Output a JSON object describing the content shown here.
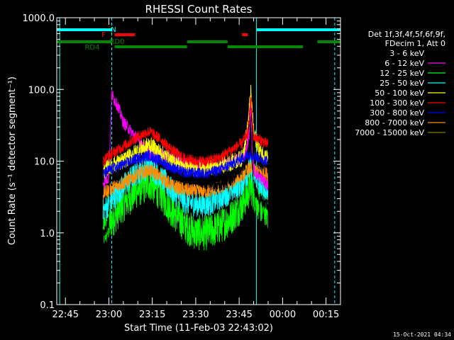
{
  "chart_data": {
    "type": "line",
    "title": "RHESSI Count Rates",
    "xlabel": "Start Time (11-Feb-03 22:43:02)",
    "ylabel": "Count Rate (s⁻¹ detector segment⁻¹)",
    "yscale": "log",
    "ylim": [
      0.1,
      1000
    ],
    "xlim_minutes": [
      -18,
      80
    ],
    "x_tick_labels": [
      "22:45",
      "23:00",
      "23:15",
      "23:30",
      "23:45",
      "00:00",
      "00:15"
    ],
    "y_tick_labels": [
      "0.1",
      "1.0",
      "10.0",
      "100.0",
      "1000.0"
    ],
    "legend_header": [
      "Det 1f,3f,4f,5f,6f,9f,",
      "FDecim 1, Att 0"
    ],
    "legend_position": "right",
    "timestamp": "15-Oct-2021 04:34",
    "series": [
      {
        "name": "3 - 6 keV",
        "color": "#000000",
        "x": [
          -2,
          0,
          1,
          3,
          5,
          8,
          11,
          14,
          18,
          22,
          26,
          30,
          34,
          38,
          42,
          45,
          47,
          48.5,
          49,
          49.5,
          50,
          51,
          52,
          53,
          54,
          55
        ],
        "y": [
          1.0,
          1.4,
          100,
          80,
          60,
          40,
          25,
          15,
          10,
          8.0,
          6.5,
          5.5,
          5.0,
          4.5,
          5.5,
          7.0,
          9.0,
          15,
          40,
          10,
          5.0,
          3.5,
          3.0,
          2.8,
          2.6,
          2.5
        ]
      },
      {
        "name": "6 - 12 keV",
        "color": "#ff00ff",
        "x": [
          -2,
          0,
          1,
          3,
          5,
          8,
          11,
          14,
          18,
          22,
          26,
          30,
          34,
          38,
          42,
          45,
          47,
          48.5,
          49,
          49.5,
          50,
          51,
          52,
          53,
          54,
          55
        ],
        "y": [
          5.0,
          6.0,
          85,
          60,
          35,
          25,
          18,
          13,
          12,
          11,
          9.5,
          9.0,
          8.5,
          8.5,
          9.5,
          10.5,
          12,
          25,
          60,
          14,
          8.0,
          6.5,
          6.0,
          5.5,
          5.0,
          4.5
        ]
      },
      {
        "name": "12 - 25 keV",
        "color": "#00ff00",
        "x": [
          -2,
          0,
          5,
          10,
          14,
          18,
          22,
          26,
          30,
          34,
          38,
          42,
          46,
          48,
          49,
          50,
          52,
          55
        ],
        "y": [
          1.0,
          1.3,
          2.5,
          4.0,
          5.0,
          3.5,
          2.0,
          1.3,
          1.0,
          1.0,
          1.2,
          1.6,
          2.5,
          3.5,
          4.5,
          3.5,
          2.5,
          2.0
        ]
      },
      {
        "name": "25 - 50 keV",
        "color": "#00ffff",
        "x": [
          -2,
          0,
          5,
          10,
          14,
          18,
          22,
          26,
          30,
          34,
          38,
          42,
          46,
          48,
          49,
          50,
          52,
          55
        ],
        "y": [
          2.0,
          2.5,
          4.5,
          7.0,
          8.5,
          6.0,
          3.8,
          2.8,
          2.5,
          2.5,
          3.0,
          3.8,
          5.0,
          7.0,
          8.0,
          6.0,
          4.5,
          3.5
        ]
      },
      {
        "name": "50 - 100 keV",
        "color": "#ffff00",
        "x": [
          -2,
          0,
          5,
          10,
          14,
          18,
          22,
          26,
          30,
          34,
          38,
          42,
          46,
          48,
          49,
          50,
          52,
          55
        ],
        "y": [
          7.0,
          8.5,
          10,
          14,
          17,
          13,
          10,
          8.5,
          8.0,
          8.0,
          8.5,
          9.5,
          11,
          30,
          95,
          25,
          14,
          11
        ]
      },
      {
        "name": "100 - 300 keV",
        "color": "#ff0000",
        "x": [
          -2,
          0,
          5,
          10,
          14,
          18,
          22,
          26,
          30,
          34,
          38,
          42,
          46,
          48,
          49,
          50,
          52,
          55
        ],
        "y": [
          10,
          12,
          16,
          22,
          26,
          20,
          14,
          11,
          10,
          10,
          11,
          14,
          18,
          25,
          75,
          22,
          20,
          17
        ]
      },
      {
        "name": "300 - 800 keV",
        "color": "#0000ff",
        "x": [
          -2,
          0,
          5,
          10,
          14,
          18,
          22,
          26,
          30,
          34,
          38,
          42,
          46,
          48,
          49,
          50,
          52,
          55
        ],
        "y": [
          6.5,
          7.5,
          9.0,
          11,
          12,
          10,
          8.0,
          7.0,
          6.8,
          6.8,
          7.5,
          9.0,
          11,
          12,
          12.5,
          12,
          11,
          10
        ]
      },
      {
        "name": "800 - 7000 keV",
        "color": "#ff8c00",
        "x": [
          -2,
          0,
          5,
          10,
          14,
          18,
          22,
          26,
          30,
          34,
          38,
          42,
          46,
          48,
          49,
          50,
          52,
          55
        ],
        "y": [
          3.5,
          4.0,
          5.0,
          6.5,
          7.5,
          6.0,
          4.5,
          4.0,
          3.8,
          3.8,
          4.2,
          5.0,
          6.5,
          7.5,
          8.0,
          7.5,
          7.0,
          6.5
        ]
      },
      {
        "name": "7000 - 15000 keV",
        "color": "#808000",
        "x": [],
        "y": []
      }
    ],
    "attenuator_bars": [
      {
        "label": "N",
        "color": "#00ffff",
        "row": 1,
        "segments": [
          [
            -18,
            1
          ],
          [
            51,
            80
          ]
        ]
      },
      {
        "label": "F",
        "color": "#ff0000",
        "row": 2,
        "segments": [
          [
            2,
            9
          ],
          [
            46,
            48
          ]
        ]
      },
      {
        "label": "RD0",
        "color": "#008800",
        "row": 3,
        "segments": [
          [
            -18,
            1
          ],
          [
            27,
            41
          ],
          [
            72,
            80
          ]
        ]
      },
      {
        "label": "RD4",
        "color": "#008800",
        "row": 4,
        "segments": [
          [
            2,
            27
          ],
          [
            41,
            67
          ]
        ]
      }
    ],
    "vlines_solid": [
      -17,
      51
    ],
    "vlines_dashed": [
      1,
      78
    ],
    "vline_color": "#00ffff"
  }
}
